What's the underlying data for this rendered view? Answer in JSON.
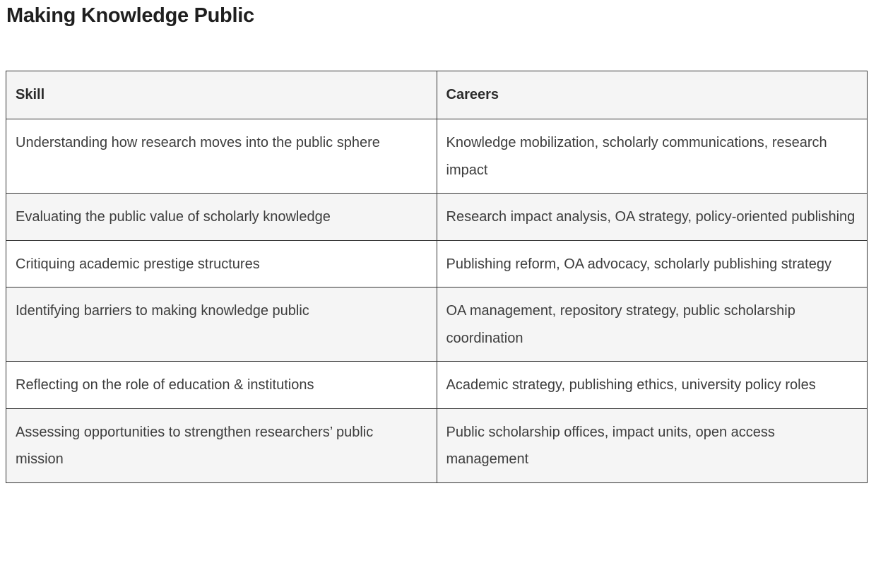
{
  "page": {
    "title": "Making Knowledge Public"
  },
  "table": {
    "headers": [
      "Skill",
      "Careers"
    ],
    "rows": [
      {
        "skill": "Understanding how research moves into the public sphere",
        "careers": "Knowledge mobilization, scholarly communications, research impact"
      },
      {
        "skill": "Evaluating the public value of scholarly knowledge",
        "careers": "Research impact analysis, OA strategy, policy-oriented publishing"
      },
      {
        "skill": "Critiquing academic prestige structures",
        "careers": "Publishing reform, OA advocacy, scholarly publishing strategy"
      },
      {
        "skill": "Identifying barriers to making knowledge public",
        "careers": "OA management, repository strategy, public scholarship coordination"
      },
      {
        "skill": "Reflecting on the role of education & institutions",
        "careers": "Academic strategy, publishing ethics, university policy roles"
      },
      {
        "skill": "Assessing opportunities to strengthen researchers’ public mission",
        "careers": "Public scholarship offices, impact units, open access management"
      }
    ]
  },
  "colors": {
    "title": "#1f1f1f",
    "text": "#3d3d3d",
    "border": "#333333",
    "stripe": "#f5f5f5",
    "background": "#ffffff"
  }
}
